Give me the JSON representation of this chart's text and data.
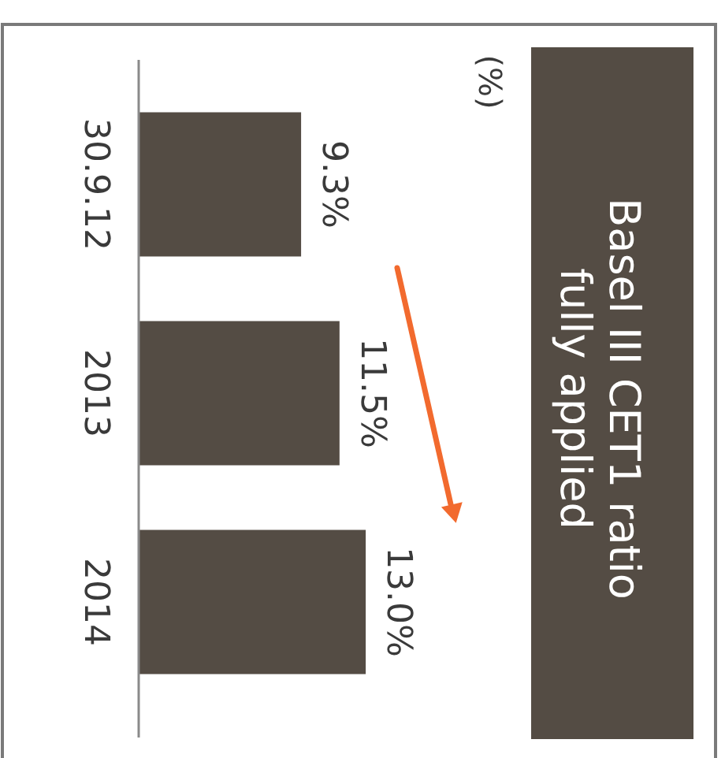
{
  "chart_data": {
    "type": "bar",
    "orientation": "horizontal",
    "title": "Basel III CET1 ratio\nfully applied",
    "annotations": [
      "(%)"
    ],
    "categories": [
      "30.9.12",
      "2013",
      "2014"
    ],
    "values": [
      9.3,
      11.5,
      13.0
    ],
    "color": "#544c44",
    "value_labels": [
      "9.3%",
      "11.5%",
      "13.0%"
    ],
    "tick_labels": "y"
  }
}
